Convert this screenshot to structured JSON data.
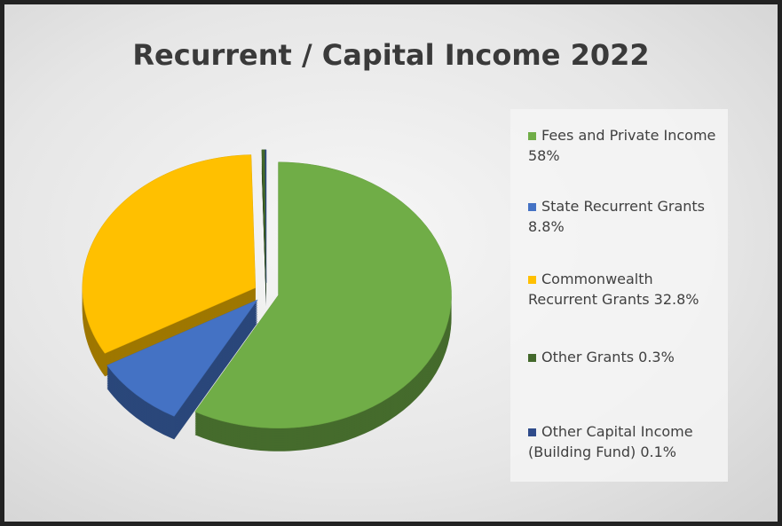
{
  "chart_data": {
    "type": "pie",
    "title": "Recurrent / Capital Income 2022",
    "categories": [
      "Fees and Private Income",
      "State Recurrent Grants",
      "Commonwealth Recurrent Grants",
      "Other Grants",
      "Other Capital Income (Building Fund)"
    ],
    "values": [
      58,
      8.8,
      32.8,
      0.3,
      0.1
    ],
    "value_labels": [
      "58%",
      "8.8%",
      "32.8%",
      "0.3%",
      "0.1%"
    ],
    "colors": [
      "#70ad47",
      "#4472c4",
      "#ffc000",
      "#43682b",
      "#2f4b8a"
    ],
    "legend": "right"
  }
}
